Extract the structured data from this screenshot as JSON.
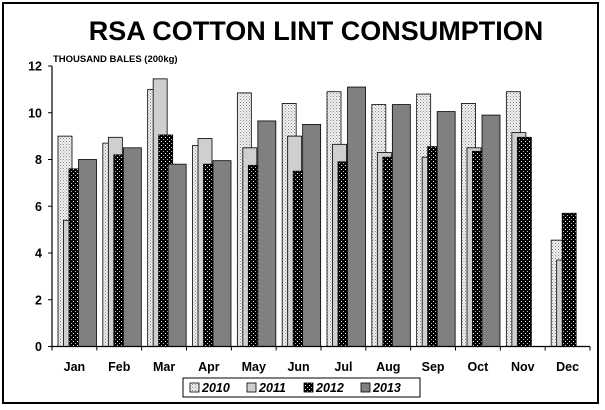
{
  "chart_data": {
    "type": "bar",
    "title": "RSA COTTON LINT CONSUMPTION",
    "ylabel": "THOUSAND BALES (200kg)",
    "xlabel": "",
    "ylim": [
      0,
      12
    ],
    "yticks": [
      0,
      2,
      4,
      6,
      8,
      10,
      12
    ],
    "grid": false,
    "legend": "bottom",
    "categories": [
      "Jan",
      "Feb",
      "Mar",
      "Apr",
      "May",
      "Jun",
      "Jul",
      "Aug",
      "Sep",
      "Oct",
      "Nov",
      "Dec"
    ],
    "series": [
      {
        "name": "2010",
        "pattern": "dots-light",
        "fill": "#e8e8e8",
        "values": [
          9.0,
          8.7,
          11.0,
          8.6,
          10.85,
          10.4,
          10.9,
          10.35,
          10.8,
          10.4,
          10.9,
          4.55
        ]
      },
      {
        "name": "2011",
        "pattern": "solid-light",
        "fill": "#c8c8c8",
        "values": [
          5.4,
          8.95,
          11.45,
          8.9,
          8.5,
          9.0,
          8.65,
          8.3,
          8.1,
          8.5,
          9.15,
          3.7
        ]
      },
      {
        "name": "2012",
        "pattern": "dots-dark",
        "fill": "#000000",
        "values": [
          7.6,
          8.2,
          9.05,
          7.8,
          7.75,
          7.5,
          7.9,
          8.1,
          8.55,
          8.35,
          8.95,
          5.7
        ]
      },
      {
        "name": "2013",
        "pattern": "solid-mid",
        "fill": "#7f7f7f",
        "values": [
          8.0,
          8.5,
          7.8,
          7.95,
          9.65,
          9.5,
          11.1,
          10.35,
          10.05,
          9.9,
          null,
          null
        ]
      }
    ]
  }
}
